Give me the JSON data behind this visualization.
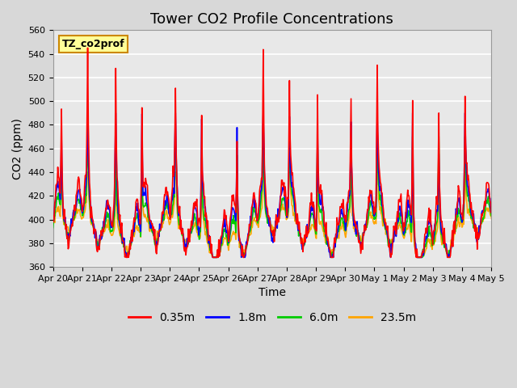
{
  "title": "Tower CO2 Profile Concentrations",
  "xlabel": "Time",
  "ylabel": "CO2 (ppm)",
  "ylim": [
    360,
    560
  ],
  "yticks": [
    360,
    380,
    400,
    420,
    440,
    460,
    480,
    500,
    520,
    540,
    560
  ],
  "colors": {
    "0.35m": "#FF0000",
    "1.8m": "#0000FF",
    "6.0m": "#00CC00",
    "23.5m": "#FFA500"
  },
  "legend_labels": [
    "0.35m",
    "1.8m",
    "6.0m",
    "23.5m"
  ],
  "annotation_text": "TZ_co2prof",
  "annotation_bg": "#FFFF99",
  "annotation_border": "#CC8800",
  "fig_bg": "#D8D8D8",
  "axes_bg": "#E8E8E8",
  "grid_color": "#FFFFFF",
  "title_fontsize": 13,
  "label_fontsize": 10,
  "tick_fontsize": 8,
  "line_width": 1.2,
  "n_points_per_day": 48,
  "n_days": 16,
  "tick_labels": [
    "Apr 20",
    "Apr 21",
    "Apr 22",
    "Apr 23",
    "Apr 24",
    "Apr 25",
    "Apr 26",
    "Apr 27",
    "Apr 28",
    "Apr 29",
    "Apr 30",
    "May 1",
    "May 2",
    "May 3",
    "May 4",
    "May 5"
  ]
}
